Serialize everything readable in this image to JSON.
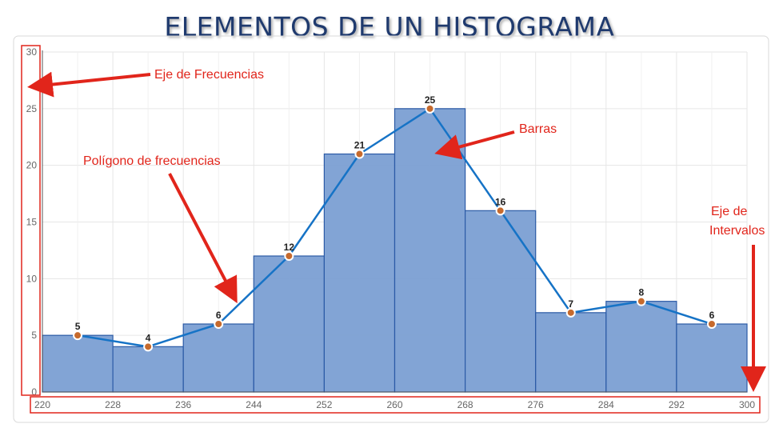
{
  "title": "ELEMENTOS DE UN HISTOGRAMA",
  "colors": {
    "title": "#1f3a6e",
    "bar_fill": "#7b9fd3",
    "bar_stroke": "#2b5aa6",
    "polygon_line": "#1673c6",
    "marker_fill": "#c66a2d",
    "annotation": "#e1251b",
    "grid": "#e6e6e6"
  },
  "annotations": {
    "eje_frecuencias": "Eje de Frecuencias",
    "barras": "Barras",
    "poligono": "Polígono de frecuencias",
    "eje_intervalos_1": "Eje de",
    "eje_intervalos_2": "Intervalos"
  },
  "chart_data": {
    "type": "bar",
    "subtype": "histogram with frequency polygon",
    "title": "ELEMENTOS DE UN HISTOGRAMA",
    "bin_edges": [
      220,
      228,
      236,
      244,
      252,
      260,
      268,
      276,
      284,
      292,
      300
    ],
    "values": [
      5,
      4,
      6,
      12,
      21,
      25,
      16,
      7,
      8,
      6
    ],
    "data_labels": [
      "5",
      "4",
      "6",
      "12",
      "21",
      "25",
      "16",
      "7",
      "8",
      "6"
    ],
    "x_tick_labels": [
      "220",
      "228",
      "236",
      "244",
      "252",
      "260",
      "268",
      "276",
      "284",
      "292",
      "300"
    ],
    "y_tick_labels": [
      "0",
      "5",
      "10",
      "15",
      "20",
      "25",
      "30"
    ],
    "ylim": [
      0,
      30
    ],
    "xlim": [
      220,
      300
    ],
    "grid": true,
    "polygon": {
      "x": [
        224,
        232,
        240,
        248,
        256,
        264,
        272,
        280,
        288,
        296
      ],
      "y": [
        5,
        4,
        6,
        12,
        21,
        25,
        16,
        7,
        8,
        6
      ]
    }
  }
}
